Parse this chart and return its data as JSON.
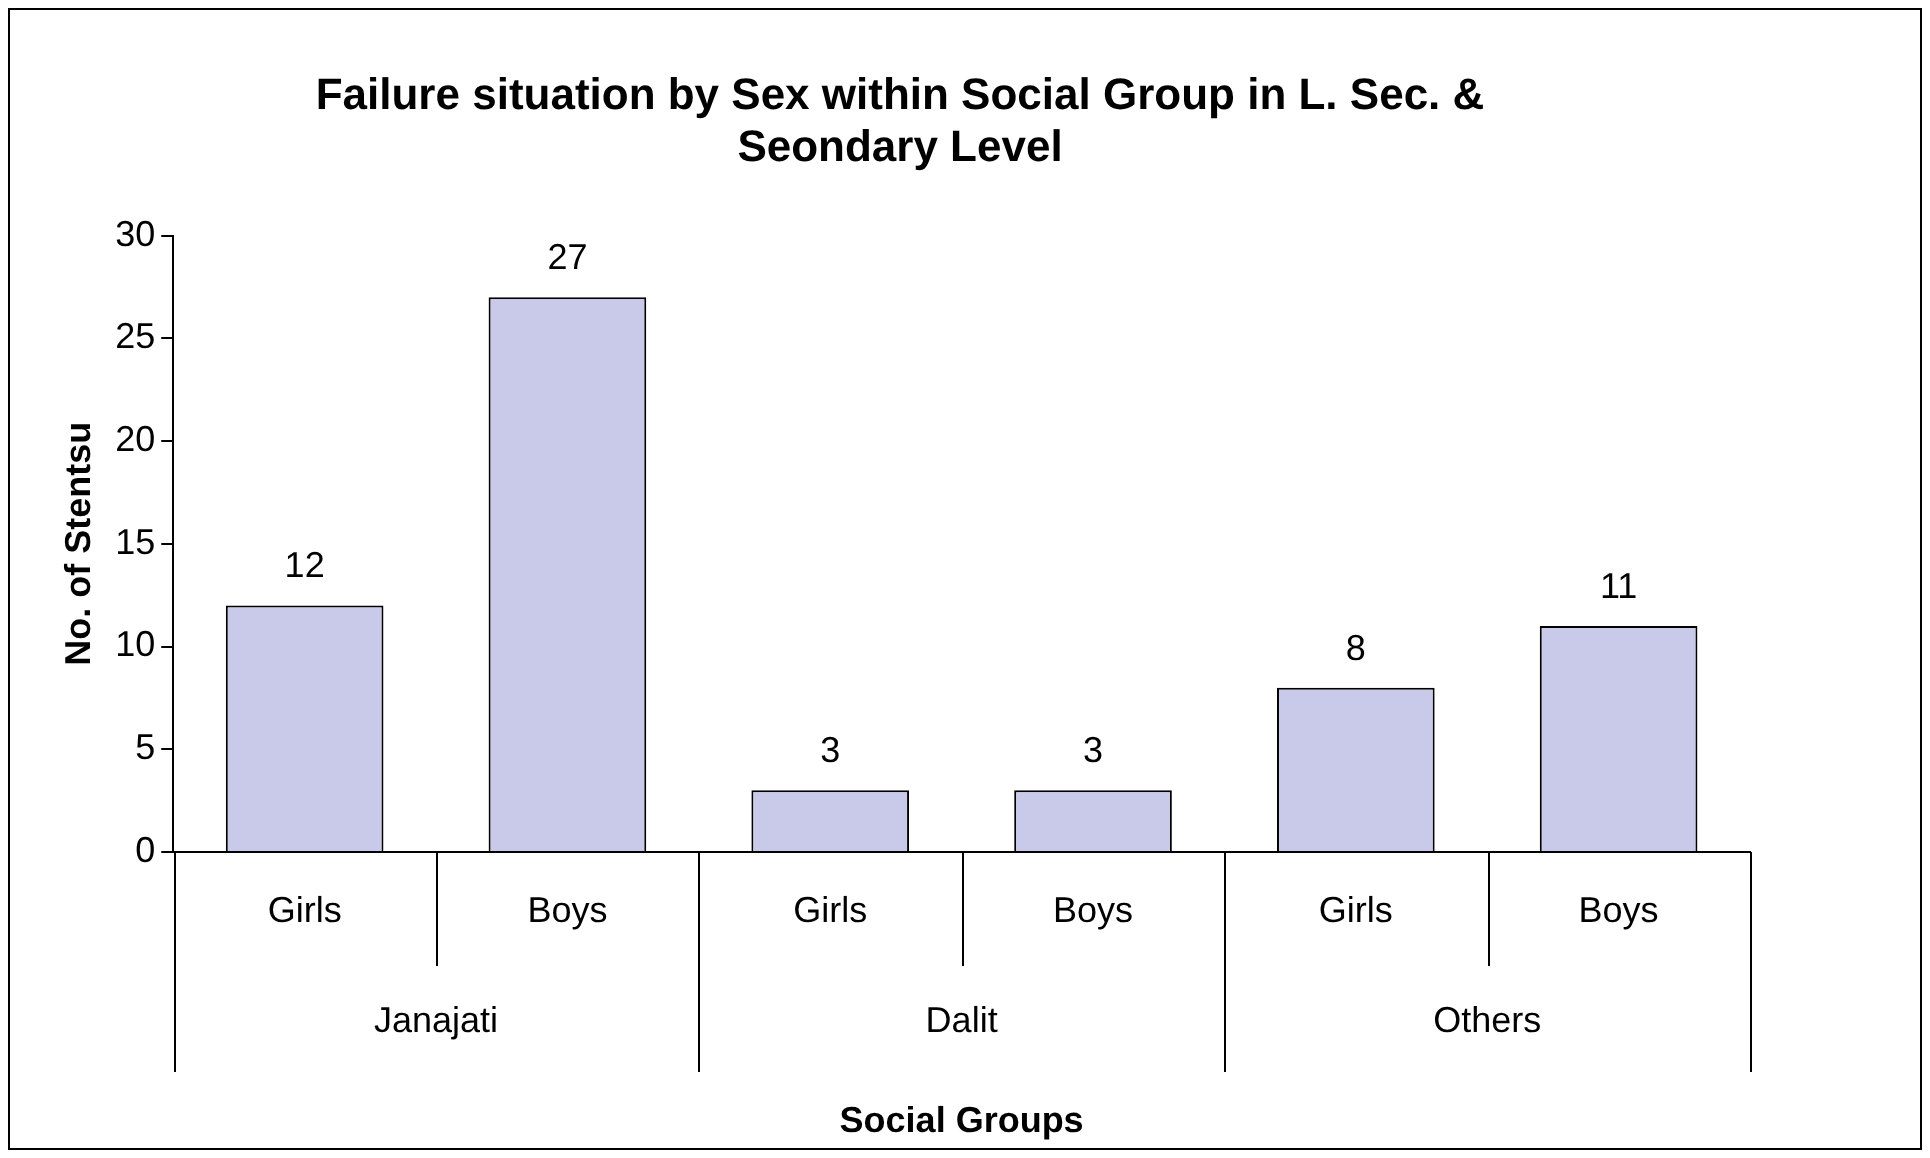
{
  "chart_data": {
    "type": "bar",
    "title": "Failure situation by Sex within Social Group in L. Sec. & Seondary Level",
    "xlabel": "Social Groups",
    "ylabel": "No. of Stentsu",
    "categories": [
      "Girls",
      "Boys",
      "Girls",
      "Boys",
      "Girls",
      "Boys"
    ],
    "values": [
      12,
      27,
      3,
      3,
      8,
      11
    ],
    "color": "#c9c9e9",
    "annotations": [
      "Janajati",
      "Dalit",
      "Others"
    ],
    "ylim": [
      0,
      30
    ],
    "yticks": [
      0,
      5,
      10,
      15,
      20,
      25,
      30
    ],
    "grid": false,
    "legend": false,
    "data_labels": true
  }
}
